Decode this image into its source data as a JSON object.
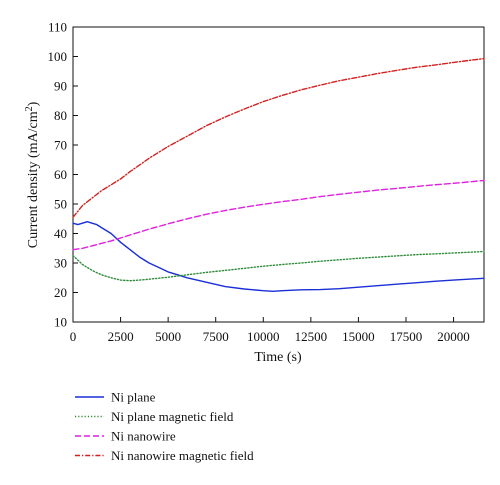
{
  "chart_data": {
    "type": "line",
    "xlabel": "Time (s)",
    "ylabel_main": "Current density (mA/cm",
    "ylabel_sup": "2",
    "ylabel_close": ")",
    "xlim": [
      0,
      21600
    ],
    "ylim": [
      10,
      110
    ],
    "x_ticks": [
      0,
      2500,
      5000,
      7500,
      10000,
      12500,
      15000,
      17500,
      20000
    ],
    "x_tick_labels": [
      "0",
      "2500",
      "5000",
      "7500",
      "10000",
      "12500",
      "15000",
      "17500",
      "20000"
    ],
    "y_ticks": [
      10,
      20,
      30,
      40,
      50,
      60,
      70,
      80,
      90,
      100,
      110
    ],
    "y_tick_labels": [
      "10",
      "20",
      "30",
      "40",
      "50",
      "60",
      "70",
      "80",
      "90",
      "100",
      "110"
    ],
    "grid": false,
    "legend_position": "below",
    "series": [
      {
        "name": "Ni plane",
        "color": "#1a2fd6",
        "style": "solid",
        "x": [
          0,
          250,
          500,
          750,
          1000,
          1250,
          1500,
          2000,
          2500,
          3000,
          3500,
          4000,
          4500,
          5000,
          5500,
          6000,
          7000,
          8000,
          9000,
          10000,
          10500,
          11000,
          12000,
          13000,
          14000,
          15000,
          16000,
          17000,
          18000,
          19000,
          20000,
          21000,
          21600
        ],
        "y": [
          43.5,
          43.0,
          43.5,
          44.0,
          43.5,
          43.0,
          42.0,
          40.0,
          37.0,
          34.5,
          32.0,
          30.0,
          28.5,
          27.0,
          26.0,
          25.0,
          23.5,
          22.0,
          21.2,
          20.6,
          20.4,
          20.6,
          20.9,
          21.0,
          21.3,
          21.8,
          22.3,
          22.8,
          23.3,
          23.8,
          24.2,
          24.6,
          24.8
        ]
      },
      {
        "name": "Ni plane magnetic field",
        "color": "#2e8b3a",
        "style": "dotted",
        "x": [
          0,
          250,
          500,
          1000,
          1500,
          2000,
          2500,
          3000,
          3500,
          4000,
          5000,
          6000,
          7000,
          8000,
          9000,
          10000,
          11000,
          12000,
          13000,
          14000,
          15000,
          16000,
          17000,
          18000,
          19000,
          20000,
          21000,
          21600
        ],
        "y": [
          32.5,
          31.0,
          29.5,
          27.5,
          26.0,
          25.0,
          24.2,
          24.0,
          24.2,
          24.5,
          25.2,
          26.0,
          26.8,
          27.5,
          28.2,
          28.9,
          29.5,
          30.0,
          30.6,
          31.1,
          31.6,
          32.0,
          32.4,
          32.8,
          33.1,
          33.4,
          33.7,
          33.9
        ]
      },
      {
        "name": "Ni nanowire",
        "color": "#e020e0",
        "style": "dashed",
        "x": [
          0,
          500,
          1000,
          2000,
          3000,
          4000,
          5000,
          6000,
          7000,
          8000,
          9000,
          10000,
          11000,
          12000,
          13000,
          14000,
          15000,
          16000,
          17000,
          18000,
          19000,
          20000,
          21000,
          21600
        ],
        "y": [
          34.5,
          35.0,
          35.8,
          37.5,
          39.5,
          41.5,
          43.3,
          45.0,
          46.5,
          47.8,
          48.9,
          49.9,
          50.8,
          51.6,
          52.5,
          53.3,
          54.0,
          54.7,
          55.3,
          55.9,
          56.5,
          57.0,
          57.6,
          58.0
        ]
      },
      {
        "name": "Ni nanowire magnetic field",
        "color": "#d42020",
        "style": "dashdot",
        "x": [
          0,
          250,
          500,
          1000,
          1500,
          2000,
          2500,
          3000,
          4000,
          5000,
          6000,
          7000,
          8000,
          9000,
          10000,
          11000,
          12000,
          13000,
          14000,
          15000,
          16000,
          17000,
          18000,
          19000,
          20000,
          21000,
          21600
        ],
        "y": [
          45.5,
          47.5,
          49.5,
          52.0,
          54.5,
          56.5,
          58.5,
          61.0,
          65.5,
          69.5,
          73.0,
          76.5,
          79.5,
          82.2,
          84.7,
          86.8,
          88.7,
          90.3,
          91.8,
          93.0,
          94.2,
          95.3,
          96.3,
          97.1,
          98.0,
          98.8,
          99.3
        ]
      }
    ]
  }
}
